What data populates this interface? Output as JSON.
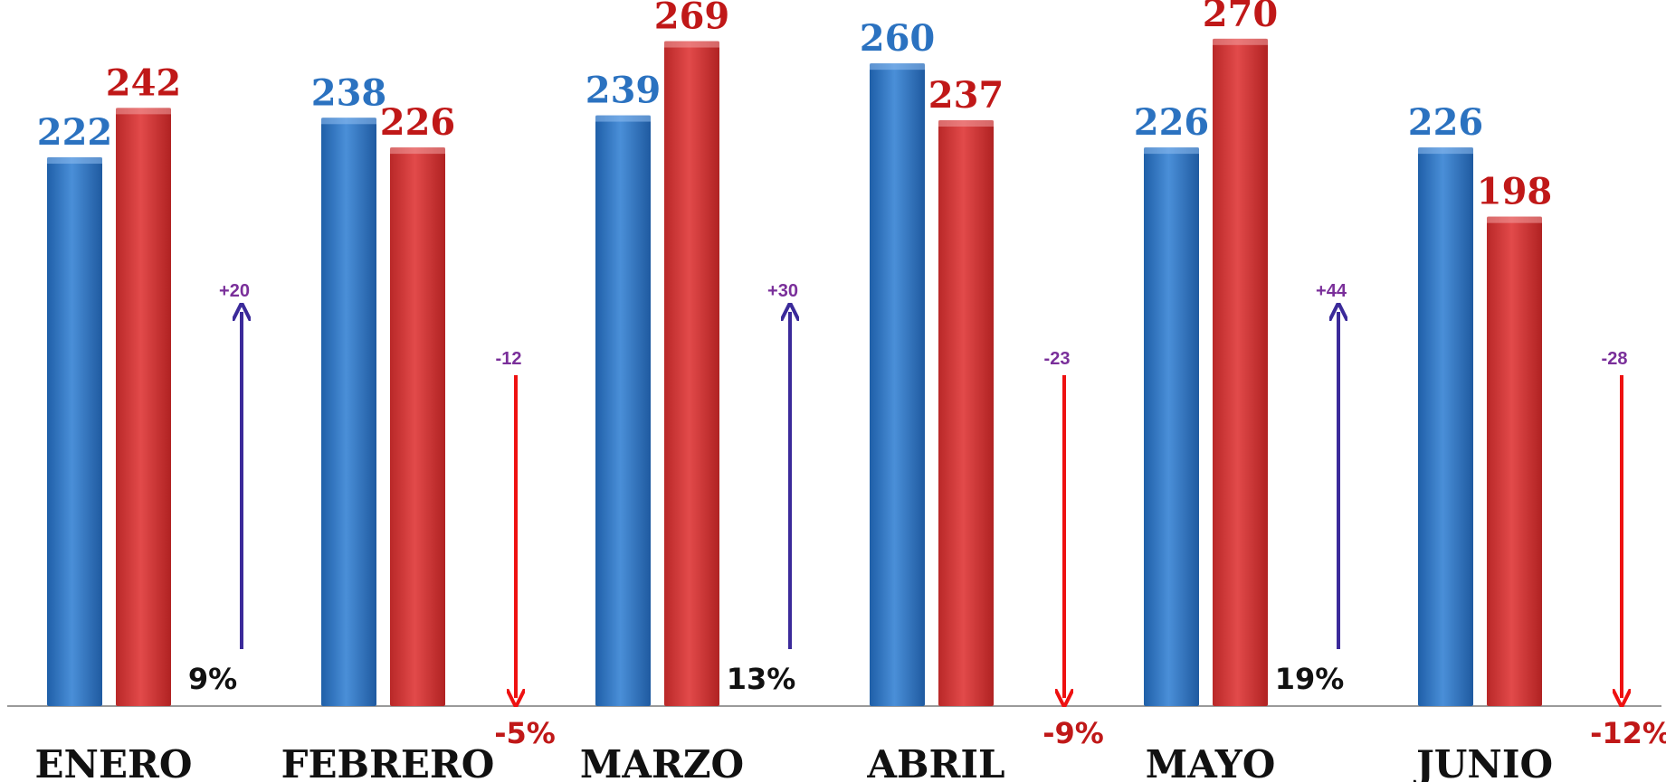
{
  "chart_data": {
    "type": "bar",
    "categories": [
      "ENERO",
      "FEBRERO",
      "MARZO",
      "ABRIL",
      "MAYO",
      "JUNIO"
    ],
    "series": [
      {
        "color": "#2b72c0",
        "values": [
          222,
          238,
          239,
          260,
          226,
          226
        ]
      },
      {
        "color": "#c01818",
        "values": [
          242,
          226,
          269,
          237,
          270,
          198
        ]
      }
    ],
    "differences": [
      "+20",
      "-12",
      "+30",
      "-23",
      "+44",
      "-28"
    ],
    "percent_changes": [
      "9%",
      "-5%",
      "13%",
      "-9%",
      "19%",
      "-12%"
    ],
    "ylim": [
      0,
      280
    ],
    "grid": false,
    "legend": "none",
    "colors": {
      "increase_arrow": "#3b2a9a",
      "decrease_arrow": "#ee1111"
    }
  }
}
